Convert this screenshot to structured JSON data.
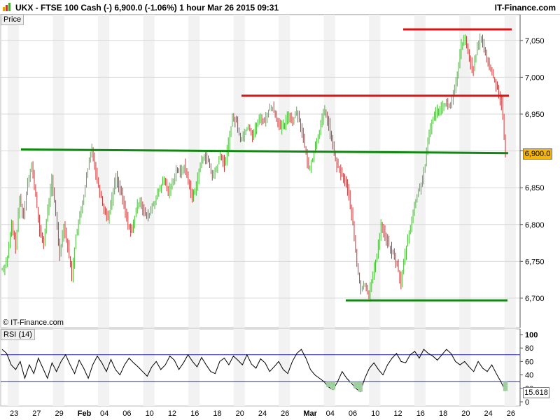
{
  "header": {
    "title": "UKX - FTSE 100 Cash (-)   6,900.0 (-1.06%)   1 hour  Mar 26 2015 09:31",
    "brand": "IT-Finance.com"
  },
  "price_panel": {
    "label": "Price",
    "copyright": "© IT-Finance.com",
    "last_value": "6,900.0"
  },
  "rsi_panel": {
    "label": "RSI (14)",
    "last_value": "15.618"
  },
  "colors": {
    "up": "#44bb33",
    "down": "#cc3333",
    "support": "#118811",
    "resistance": "#dd1111",
    "rsi_line": "#000000",
    "rsi_band": "#2222aa",
    "last_badge": "#f5b400"
  },
  "chart_data": [
    {
      "type": "line",
      "title": "",
      "ylabel": "Price",
      "ylim": [
        6660,
        7085
      ],
      "yticks": [
        6700,
        6750,
        6800,
        6850,
        6900,
        6950,
        7000,
        7050
      ],
      "ytick_labels": [
        "6,700",
        "6,750",
        "6,800",
        "6,850",
        "6,900",
        "6,950",
        "7,000",
        "7,050"
      ],
      "x_labels": [
        "23",
        "27",
        "29",
        "Feb",
        "04",
        "06",
        "10",
        "12",
        "16",
        "18",
        "20",
        "24",
        "26",
        "Mar",
        "04",
        "06",
        "10",
        "12",
        "16",
        "18",
        "20",
        "24",
        "26"
      ],
      "grid": true,
      "series": [
        {
          "style": "hourly OHLC bars",
          "values": [
            6740,
            6755,
            6800,
            6770,
            6835,
            6810,
            6860,
            6880,
            6840,
            6790,
            6775,
            6820,
            6860,
            6815,
            6760,
            6800,
            6770,
            6730,
            6785,
            6810,
            6840,
            6875,
            6905,
            6870,
            6845,
            6820,
            6810,
            6835,
            6865,
            6848,
            6825,
            6800,
            6790,
            6820,
            6835,
            6815,
            6810,
            6825,
            6835,
            6850,
            6860,
            6845,
            6855,
            6875,
            6870,
            6880,
            6860,
            6835,
            6855,
            6880,
            6895,
            6885,
            6865,
            6875,
            6895,
            6880,
            6910,
            6945,
            6940,
            6915,
            6925,
            6935,
            6920,
            6935,
            6945,
            6940,
            6955,
            6960,
            6945,
            6930,
            6935,
            6950,
            6940,
            6955,
            6935,
            6905,
            6875,
            6890,
            6915,
            6935,
            6955,
            6935,
            6905,
            6880,
            6870,
            6860,
            6840,
            6800,
            6745,
            6710,
            6720,
            6705,
            6730,
            6760,
            6800,
            6785,
            6770,
            6760,
            6745,
            6720,
            6760,
            6790,
            6815,
            6840,
            6855,
            6880,
            6925,
            6945,
            6955,
            6960,
            6965,
            6960,
            6975,
            7000,
            7045,
            7050,
            7025,
            7010,
            7040,
            7055,
            7030,
            7015,
            7000,
            6985,
            6965,
            6900
          ]
        }
      ],
      "annotations": [
        {
          "kind": "support",
          "y_start": 6902,
          "y_end": 6897,
          "color": "#118811"
        },
        {
          "kind": "resistance",
          "y": 6975,
          "color": "#dd1111"
        },
        {
          "kind": "resistance",
          "y": 7065,
          "color": "#dd1111"
        },
        {
          "kind": "support",
          "y": 6697,
          "color": "#118811"
        }
      ]
    },
    {
      "type": "line",
      "title": "RSI (14)",
      "ylim": [
        0,
        100
      ],
      "yticks": [
        0,
        20,
        40,
        60,
        80,
        100
      ],
      "ytick_labels": [
        "0",
        "20",
        "40",
        "60",
        "80",
        "100"
      ],
      "bands": [
        30,
        70
      ],
      "series": [
        {
          "name": "RSI (14)",
          "values": [
            78,
            72,
            55,
            48,
            60,
            35,
            55,
            42,
            65,
            50,
            35,
            58,
            45,
            60,
            70,
            55,
            42,
            62,
            50,
            35,
            55,
            68,
            58,
            45,
            63,
            48,
            40,
            55,
            65,
            58,
            52,
            45,
            38,
            52,
            60,
            48,
            55,
            68,
            62,
            48,
            58,
            70,
            60,
            52,
            66,
            55,
            45,
            42,
            60,
            65,
            55,
            68,
            62,
            55,
            70,
            56,
            50,
            64,
            58,
            45,
            52,
            60,
            48,
            42,
            60,
            72,
            78,
            65,
            48,
            40,
            35,
            30,
            22,
            18,
            30,
            45,
            35,
            28,
            20,
            15,
            35,
            50,
            58,
            48,
            40,
            55,
            65,
            72,
            60,
            58,
            70,
            75,
            65,
            78,
            72,
            68,
            62,
            70,
            78,
            72,
            60,
            55,
            60,
            52,
            45,
            60,
            50,
            45,
            55,
            42,
            30,
            16
          ]
        }
      ]
    }
  ]
}
